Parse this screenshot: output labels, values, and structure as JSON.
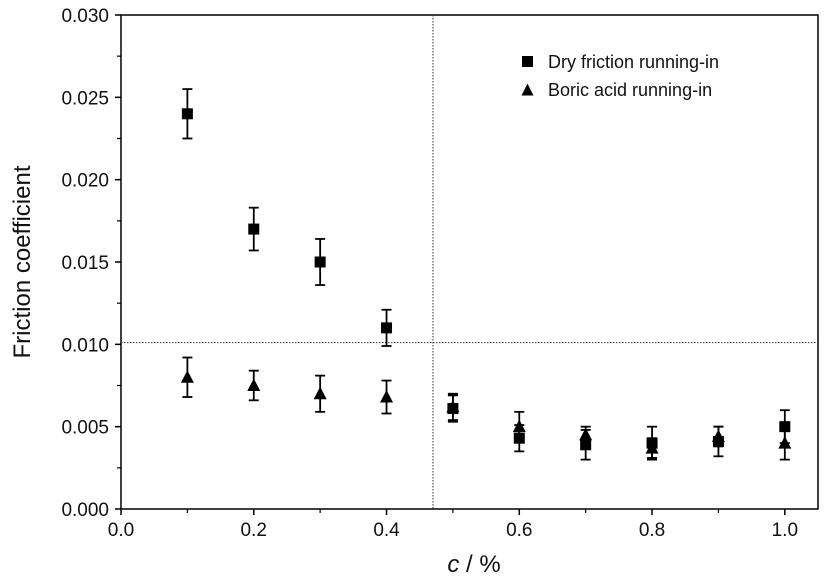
{
  "chart_data": {
    "type": "scatter",
    "title": "",
    "xlabel": {
      "italic_var": "c",
      "rest": " / %"
    },
    "ylabel": "Friction coefficient",
    "xlim": [
      0.0,
      1.05
    ],
    "ylim": [
      0.0,
      0.03
    ],
    "x_ticks": [
      0.0,
      0.2,
      0.4,
      0.6,
      0.8,
      1.0
    ],
    "x_tick_labels": [
      "0.0",
      "0.2",
      "0.4",
      "0.6",
      "0.8",
      "1.0"
    ],
    "y_ticks": [
      0.0,
      0.005,
      0.01,
      0.015,
      0.02,
      0.025,
      0.03
    ],
    "y_tick_labels": [
      "0.000",
      "0.005",
      "0.010",
      "0.015",
      "0.020",
      "0.025",
      "0.030"
    ],
    "grid": false,
    "reference_lines": {
      "vertical_x": 0.47,
      "horizontal_y": 0.0101
    },
    "legend_position": "top-right",
    "series": [
      {
        "name": "Dry friction running-in",
        "marker": "square",
        "color": "#000000",
        "points": [
          {
            "x": 0.1,
            "y": 0.024,
            "err": 0.0015
          },
          {
            "x": 0.2,
            "y": 0.017,
            "err": 0.0013
          },
          {
            "x": 0.3,
            "y": 0.015,
            "err": 0.0014
          },
          {
            "x": 0.4,
            "y": 0.011,
            "err": 0.0011
          },
          {
            "x": 0.5,
            "y": 0.0061,
            "err": 0.0008
          },
          {
            "x": 0.6,
            "y": 0.0043,
            "err": 0.0008
          },
          {
            "x": 0.7,
            "y": 0.0039,
            "err": 0.0009
          },
          {
            "x": 0.8,
            "y": 0.004,
            "err": 0.001
          },
          {
            "x": 0.9,
            "y": 0.0041,
            "err": 0.0009
          },
          {
            "x": 1.0,
            "y": 0.005,
            "err": 0.001
          }
        ]
      },
      {
        "name": "Boric acid running-in",
        "marker": "triangle",
        "color": "#000000",
        "points": [
          {
            "x": 0.1,
            "y": 0.008,
            "err": 0.0012
          },
          {
            "x": 0.2,
            "y": 0.0075,
            "err": 0.0009
          },
          {
            "x": 0.3,
            "y": 0.007,
            "err": 0.0011
          },
          {
            "x": 0.4,
            "y": 0.0068,
            "err": 0.001
          },
          {
            "x": 0.5,
            "y": 0.0062,
            "err": 0.0008
          },
          {
            "x": 0.6,
            "y": 0.005,
            "err": 0.0009
          },
          {
            "x": 0.7,
            "y": 0.0045,
            "err": 0.0005
          },
          {
            "x": 0.8,
            "y": 0.0037,
            "err": 0.0006
          },
          {
            "x": 0.9,
            "y": 0.0044,
            "err": 0.0006
          },
          {
            "x": 1.0,
            "y": 0.004,
            "err": 0.001
          }
        ]
      }
    ]
  }
}
